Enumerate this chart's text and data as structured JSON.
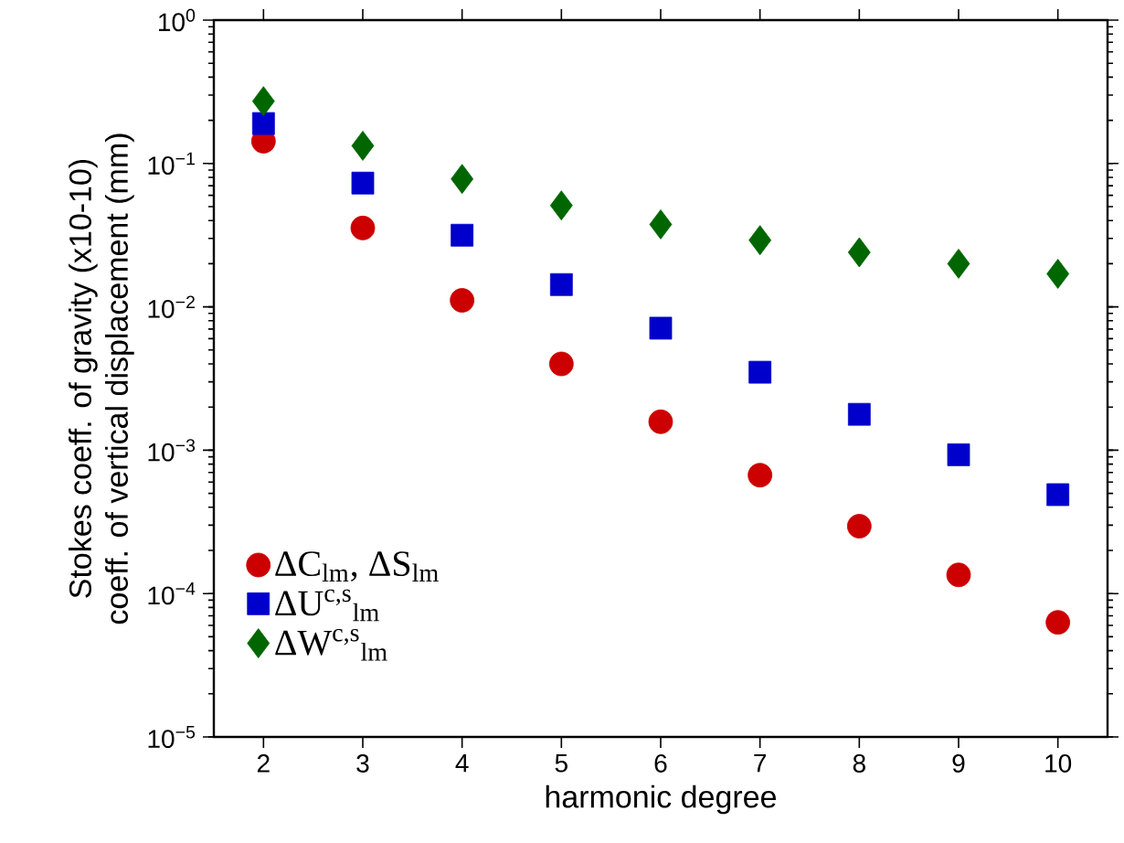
{
  "chart_data": {
    "type": "scatter",
    "xlabel": "harmonic degree",
    "ylabel": [
      "Stokes coeff. of gravity (x10-10)",
      "coeff. of vertical displacement (mm)"
    ],
    "x": [
      2,
      3,
      4,
      5,
      6,
      7,
      8,
      9,
      10
    ],
    "series": [
      {
        "name": "ΔC$_{lm}$, ΔS$_{lm}$",
        "color": "#cc0000",
        "marker": "circle",
        "values": [
          0.143,
          0.0355,
          0.0111,
          0.004,
          0.00158,
          0.00067,
          0.000295,
          0.000135,
          6.3e-05
        ]
      },
      {
        "name": "ΔU$^{c,s}$$_{lm}$",
        "color": "#0000cc",
        "marker": "square",
        "values": [
          0.19,
          0.073,
          0.0316,
          0.0143,
          0.0071,
          0.0035,
          0.00178,
          0.00093,
          0.00049
        ]
      },
      {
        "name": "ΔW$^{c,s}$$_{lm}$",
        "color": "#006600",
        "marker": "diamond",
        "values": [
          0.272,
          0.133,
          0.078,
          0.051,
          0.0376,
          0.0292,
          0.024,
          0.02,
          0.017
        ]
      }
    ],
    "log": "y",
    "xlim": [
      1.5,
      10.5
    ],
    "ylim": [
      1e-05,
      1
    ],
    "xticks": [
      2,
      3,
      4,
      5,
      6,
      7,
      8,
      9,
      10
    ],
    "yticks": [
      {
        "value": 1e-05,
        "label": "10$^{−5}$"
      },
      {
        "value": 0.0001,
        "label": "10$^{−4}$"
      },
      {
        "value": 0.001,
        "label": "10$^{−3}$"
      },
      {
        "value": 0.01,
        "label": "10$^{−2}$"
      },
      {
        "value": 0.1,
        "label": "10$^{−1}$"
      },
      {
        "value": 1,
        "label": "10$^{0}$"
      }
    ],
    "grid": false,
    "legend": "bottom left"
  }
}
